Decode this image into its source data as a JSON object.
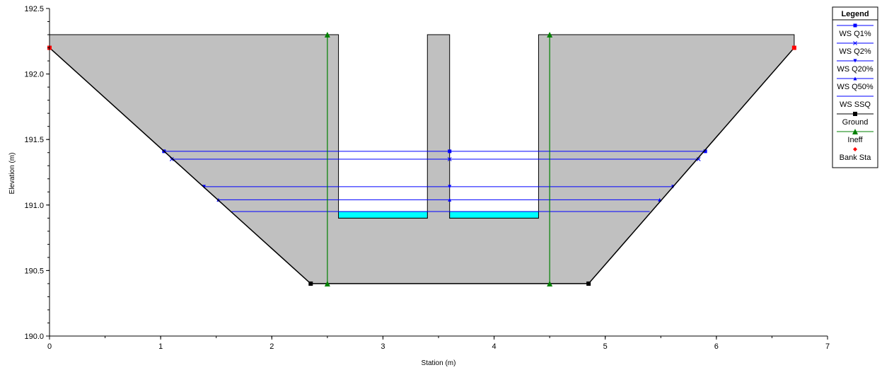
{
  "chart_data": {
    "type": "line",
    "xlabel": "Station (m)",
    "ylabel": "Elevation (m)",
    "xlim": [
      0,
      7
    ],
    "ylim": [
      190.0,
      192.5
    ],
    "x_ticks": [
      "0",
      "1",
      "2",
      "3",
      "4",
      "5",
      "6",
      "7"
    ],
    "y_ticks": [
      "190.0",
      "190.5",
      "191.0",
      "191.5",
      "192.0",
      "192.5"
    ],
    "grid": false,
    "legend_position": "top-right",
    "legend_title": "Legend",
    "ground": {
      "name": "Ground",
      "color": "#000000",
      "points": [
        [
          0,
          192.2
        ],
        [
          2.35,
          190.4
        ],
        [
          4.85,
          190.4
        ],
        [
          6.7,
          192.2
        ]
      ],
      "markers": [
        [
          2.35,
          190.4
        ],
        [
          4.85,
          190.4
        ]
      ]
    },
    "blocked_obstructions": {
      "color": "#c0c0c0",
      "outline": [
        [
          0,
          192.3
        ],
        [
          2.6,
          192.3
        ],
        [
          2.6,
          190.9
        ],
        [
          3.4,
          190.9
        ],
        [
          3.4,
          192.3
        ],
        [
          3.6,
          192.3
        ],
        [
          3.6,
          190.9
        ],
        [
          4.4,
          190.9
        ],
        [
          4.4,
          192.3
        ],
        [
          6.7,
          192.3
        ],
        [
          6.7,
          192.2
        ],
        [
          4.85,
          190.4
        ],
        [
          2.35,
          190.4
        ],
        [
          0,
          192.2
        ]
      ]
    },
    "water_fill": {
      "color": "#00ffff",
      "elevation": 190.95,
      "bottom": 190.9,
      "segments": [
        [
          2.6,
          3.4
        ],
        [
          3.6,
          4.4
        ]
      ]
    },
    "ineffective": {
      "name": "Ineff",
      "color": "#008000",
      "lines": [
        {
          "x": 2.5,
          "y_bottom": 190.4,
          "y_top": 192.3
        },
        {
          "x": 4.5,
          "y_bottom": 190.4,
          "y_top": 192.3
        }
      ]
    },
    "bank_stations": {
      "name": "Bank Sta",
      "color": "#ff0000",
      "points": [
        [
          0,
          192.2
        ],
        [
          6.7,
          192.2
        ]
      ]
    },
    "series": [
      {
        "name": "WS Q1%",
        "elevation": 191.41,
        "marker": "square",
        "color": "#0000ff",
        "x_left": 1.03,
        "x_mid": 3.6,
        "x_right": 5.9
      },
      {
        "name": "WS Q2%",
        "elevation": 191.35,
        "marker": "x",
        "color": "#0000ff",
        "x_left": 1.1,
        "x_mid": 3.6,
        "x_right": 5.84
      },
      {
        "name": "WS Q20%",
        "elevation": 191.14,
        "marker": "triangle-down",
        "color": "#0000ff",
        "x_left": 1.39,
        "x_mid": 3.6,
        "x_right": 5.61
      },
      {
        "name": "WS Q50%",
        "elevation": 191.04,
        "marker": "triangle-up",
        "color": "#0000ff",
        "x_left": 1.52,
        "x_mid": 3.6,
        "x_right": 5.49
      },
      {
        "name": "WS SSQ",
        "elevation": 190.95,
        "marker": "none",
        "color": "#0000ff",
        "x_left": 1.64,
        "x_mid": 3.6,
        "x_right": 5.4
      }
    ]
  }
}
